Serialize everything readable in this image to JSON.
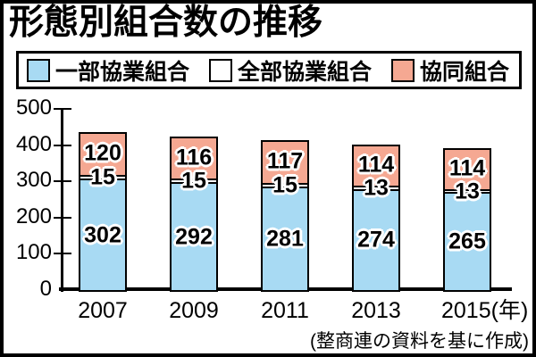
{
  "chart_data": {
    "type": "bar",
    "stacked": true,
    "title": "形態別組合数の推移",
    "categories": [
      "2007",
      "2009",
      "2011",
      "2013",
      "2015"
    ],
    "x_axis_unit_suffix": "(年)",
    "series": [
      {
        "name": "一部協業組合",
        "color": "#a8daf3",
        "values": [
          302,
          292,
          281,
          274,
          265
        ]
      },
      {
        "name": "全部協業組合",
        "color": "#ffffff",
        "values": [
          15,
          15,
          15,
          13,
          13
        ]
      },
      {
        "name": "協同組合",
        "color": "#f5a892",
        "values": [
          120,
          116,
          117,
          114,
          114
        ]
      }
    ],
    "ylim": [
      0,
      500
    ],
    "yticks": [
      0,
      100,
      200,
      300,
      400,
      500
    ],
    "legend_position": "top",
    "grid": false,
    "source_note": "(整商連の資料を基に作成)"
  }
}
